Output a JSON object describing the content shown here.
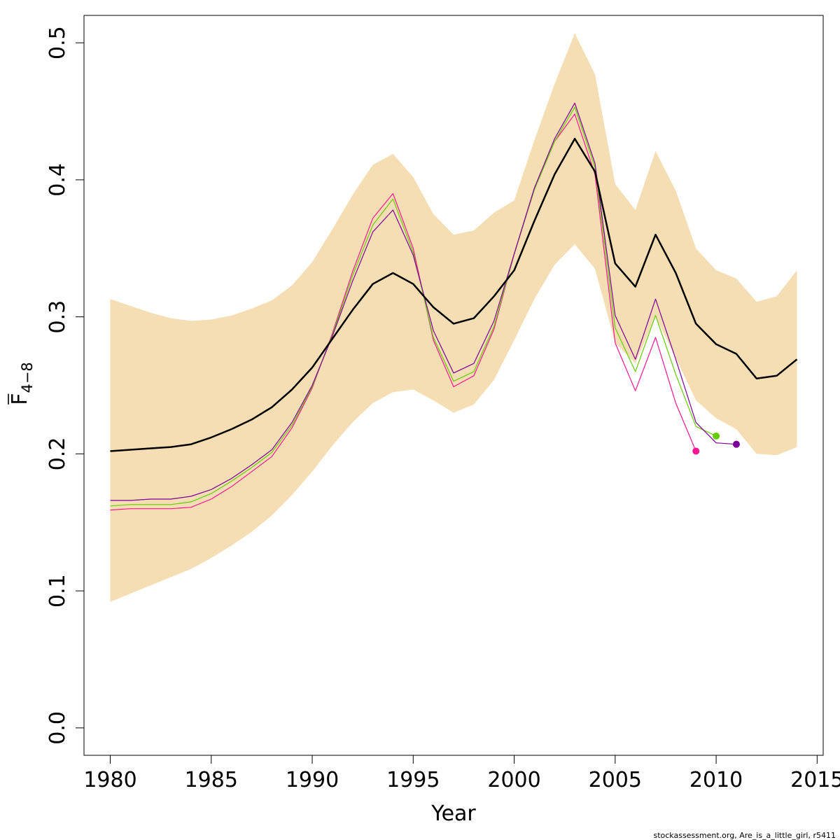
{
  "chart_data": {
    "type": "line",
    "xlabel": "Year",
    "ylabel": {
      "main": "F",
      "sub": "4−8"
    },
    "xlim": [
      1978.7,
      2015.3
    ],
    "ylim": [
      -0.02,
      0.52
    ],
    "x_ticks": [
      1980,
      1985,
      1990,
      1995,
      2000,
      2005,
      2010,
      2015
    ],
    "y_ticks": [
      0.0,
      0.1,
      0.2,
      0.3,
      0.4,
      0.5
    ],
    "y_tick_labels": [
      "0.0",
      "0.1",
      "0.2",
      "0.3",
      "0.4",
      "0.5"
    ],
    "grid": false,
    "band": {
      "color": "#F5DEB3",
      "x": [
        1980,
        1981,
        1982,
        1983,
        1984,
        1985,
        1986,
        1987,
        1988,
        1989,
        1990,
        1991,
        1992,
        1993,
        1994,
        1995,
        1996,
        1997,
        1998,
        1999,
        2000,
        2001,
        2002,
        2003,
        2004,
        2005,
        2006,
        2007,
        2008,
        2009,
        2010,
        2011,
        2012,
        2013,
        2014
      ],
      "upper": [
        0.313,
        0.308,
        0.303,
        0.299,
        0.297,
        0.298,
        0.301,
        0.306,
        0.312,
        0.323,
        0.34,
        0.364,
        0.389,
        0.411,
        0.419,
        0.402,
        0.375,
        0.36,
        0.363,
        0.376,
        0.385,
        0.429,
        0.47,
        0.507,
        0.477,
        0.397,
        0.378,
        0.421,
        0.392,
        0.35,
        0.334,
        0.328,
        0.311,
        0.315,
        0.334
      ],
      "lower": [
        0.092,
        0.098,
        0.104,
        0.11,
        0.116,
        0.124,
        0.133,
        0.143,
        0.155,
        0.17,
        0.187,
        0.206,
        0.223,
        0.237,
        0.245,
        0.247,
        0.239,
        0.23,
        0.236,
        0.254,
        0.283,
        0.313,
        0.338,
        0.353,
        0.335,
        0.281,
        0.266,
        0.3,
        0.27,
        0.239,
        0.226,
        0.218,
        0.2,
        0.199,
        0.205
      ]
    },
    "series": [
      {
        "color": "#000000",
        "width": 2.5,
        "x": [
          1980,
          1981,
          1982,
          1983,
          1984,
          1985,
          1986,
          1987,
          1988,
          1989,
          1990,
          1991,
          1992,
          1993,
          1994,
          1995,
          1996,
          1997,
          1998,
          1999,
          2000,
          2001,
          2002,
          2003,
          2004,
          2005,
          2006,
          2007,
          2008,
          2009,
          2010,
          2011,
          2012,
          2013,
          2014
        ],
        "values": [
          0.202,
          0.203,
          0.204,
          0.205,
          0.207,
          0.212,
          0.218,
          0.225,
          0.234,
          0.247,
          0.263,
          0.284,
          0.305,
          0.324,
          0.332,
          0.324,
          0.307,
          0.295,
          0.299,
          0.315,
          0.334,
          0.37,
          0.404,
          0.43,
          0.406,
          0.339,
          0.322,
          0.36,
          0.332,
          0.295,
          0.28,
          0.273,
          0.255,
          0.257,
          0.269
        ]
      },
      {
        "color": "#FF1493",
        "width": 1.2,
        "end_marker": true,
        "x": [
          1980,
          1981,
          1982,
          1983,
          1984,
          1985,
          1986,
          1987,
          1988,
          1989,
          1990,
          1991,
          1992,
          1993,
          1994,
          1995,
          1996,
          1997,
          1998,
          1999,
          2000,
          2001,
          2002,
          2003,
          2004,
          2005,
          2006,
          2007,
          2008,
          2009
        ],
        "values": [
          0.159,
          0.16,
          0.16,
          0.16,
          0.161,
          0.167,
          0.176,
          0.187,
          0.198,
          0.219,
          0.248,
          0.288,
          0.333,
          0.372,
          0.39,
          0.35,
          0.283,
          0.249,
          0.257,
          0.291,
          0.346,
          0.393,
          0.428,
          0.448,
          0.404,
          0.281,
          0.246,
          0.285,
          0.237,
          0.202
        ]
      },
      {
        "color": "#66CC00",
        "width": 1.2,
        "end_marker": true,
        "x": [
          1980,
          1981,
          1982,
          1983,
          1984,
          1985,
          1986,
          1987,
          1988,
          1989,
          1990,
          1991,
          1992,
          1993,
          1994,
          1995,
          1996,
          1997,
          1998,
          1999,
          2000,
          2001,
          2002,
          2003,
          2004,
          2005,
          2006,
          2007,
          2008,
          2009,
          2010
        ],
        "values": [
          0.162,
          0.163,
          0.163,
          0.163,
          0.165,
          0.171,
          0.18,
          0.19,
          0.201,
          0.221,
          0.249,
          0.287,
          0.33,
          0.367,
          0.386,
          0.347,
          0.285,
          0.253,
          0.26,
          0.293,
          0.346,
          0.393,
          0.428,
          0.453,
          0.409,
          0.292,
          0.26,
          0.301,
          0.258,
          0.22,
          0.213
        ]
      },
      {
        "color": "#7B0099",
        "width": 1.2,
        "end_marker": true,
        "x": [
          1980,
          1981,
          1982,
          1983,
          1984,
          1985,
          1986,
          1987,
          1988,
          1989,
          1990,
          1991,
          1992,
          1993,
          1994,
          1995,
          1996,
          1997,
          1998,
          1999,
          2000,
          2001,
          2002,
          2003,
          2004,
          2005,
          2006,
          2007,
          2008,
          2009,
          2010,
          2011
        ],
        "values": [
          0.166,
          0.166,
          0.167,
          0.167,
          0.169,
          0.174,
          0.182,
          0.192,
          0.203,
          0.223,
          0.25,
          0.286,
          0.326,
          0.362,
          0.378,
          0.345,
          0.29,
          0.259,
          0.266,
          0.297,
          0.346,
          0.394,
          0.43,
          0.456,
          0.412,
          0.301,
          0.269,
          0.313,
          0.269,
          0.223,
          0.208,
          0.207
        ]
      }
    ]
  },
  "footer": "stockassessment.org, Are_is_a_little_girl, r5411"
}
